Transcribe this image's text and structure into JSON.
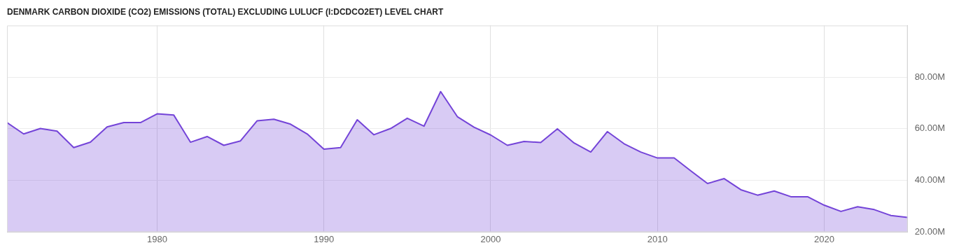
{
  "chart_data": {
    "type": "area",
    "title": "DENMARK CARBON DIOXIDE (CO2) EMISSIONS (TOTAL) EXCLUDING LULUCF (I:DCDCO2ET) LEVEL CHART",
    "x": [
      1971,
      1972,
      1973,
      1974,
      1975,
      1976,
      1977,
      1978,
      1979,
      1980,
      1981,
      1982,
      1983,
      1984,
      1985,
      1986,
      1987,
      1988,
      1989,
      1990,
      1991,
      1992,
      1993,
      1994,
      1995,
      1996,
      1997,
      1998,
      1999,
      2000,
      2001,
      2002,
      2003,
      2004,
      2005,
      2006,
      2007,
      2008,
      2009,
      2010,
      2011,
      2012,
      2013,
      2014,
      2015,
      2016,
      2017,
      2018,
      2019,
      2020,
      2021,
      2022,
      2023,
      2024,
      2025
    ],
    "series": [
      {
        "color": "#7444d8",
        "values": [
          62.4,
          58.0,
          60.1,
          59.1,
          52.7,
          54.8,
          60.7,
          62.4,
          62.4,
          65.8,
          65.3,
          54.8,
          57.0,
          53.6,
          55.3,
          63.1,
          63.7,
          61.8,
          58.0,
          52.1,
          52.7,
          63.5,
          57.7,
          60.1,
          64.1,
          61.0,
          74.4,
          64.7,
          60.6,
          57.6,
          53.6,
          55.1,
          54.7,
          60.0,
          54.5,
          51.0,
          58.9,
          54.2,
          51.0,
          48.7,
          48.7,
          43.7,
          38.8,
          40.7,
          36.4,
          34.3,
          35.9,
          33.7,
          33.7,
          30.4,
          28.0,
          29.8,
          28.7,
          26.4,
          25.7
        ]
      }
    ],
    "xlim": [
      1971,
      2025
    ],
    "xticks": [
      1980,
      1990,
      2000,
      2010,
      2020
    ],
    "ylim": [
      20,
      100
    ],
    "yticks": [
      {
        "value": 20,
        "label": "20.00M"
      },
      {
        "value": 40,
        "label": "40.00M"
      },
      {
        "value": 60,
        "label": "60.00M"
      },
      {
        "value": 80,
        "label": "80.00M"
      }
    ],
    "grid": true,
    "legend": false,
    "marker": "none"
  }
}
